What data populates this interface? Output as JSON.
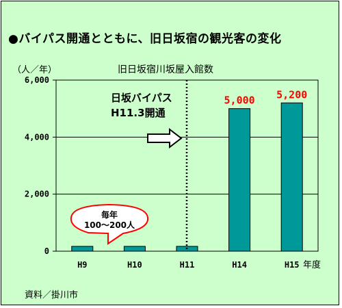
{
  "title": "●バイパス開通とともに、旧日坂宿の観光客の変化",
  "source": "資料／掛川市",
  "chart_data": {
    "type": "bar",
    "title": "旧日坂宿川坂屋入館数",
    "ylabel": "（人／年）",
    "xlabel": "年度",
    "categories": [
      "H9",
      "H10",
      "H11",
      "H14",
      "H15"
    ],
    "values": [
      170,
      170,
      170,
      5000,
      5200
    ],
    "data_labels": [
      "",
      "",
      "",
      "5,000",
      "5,200"
    ],
    "ylim": [
      0,
      6000
    ],
    "yticks": [
      0,
      2000,
      4000,
      6000
    ],
    "ytick_labels": [
      "0",
      "2,000",
      "4,000",
      "6,000"
    ],
    "grid": true,
    "bar_color": "#009999",
    "plot_bg": "#ccffcc",
    "annotations": {
      "bypass_line1": "日坂バイパス",
      "bypass_line2": "H11.3開通",
      "bubble_line1": "毎年",
      "bubble_line2": "100～200人"
    }
  }
}
